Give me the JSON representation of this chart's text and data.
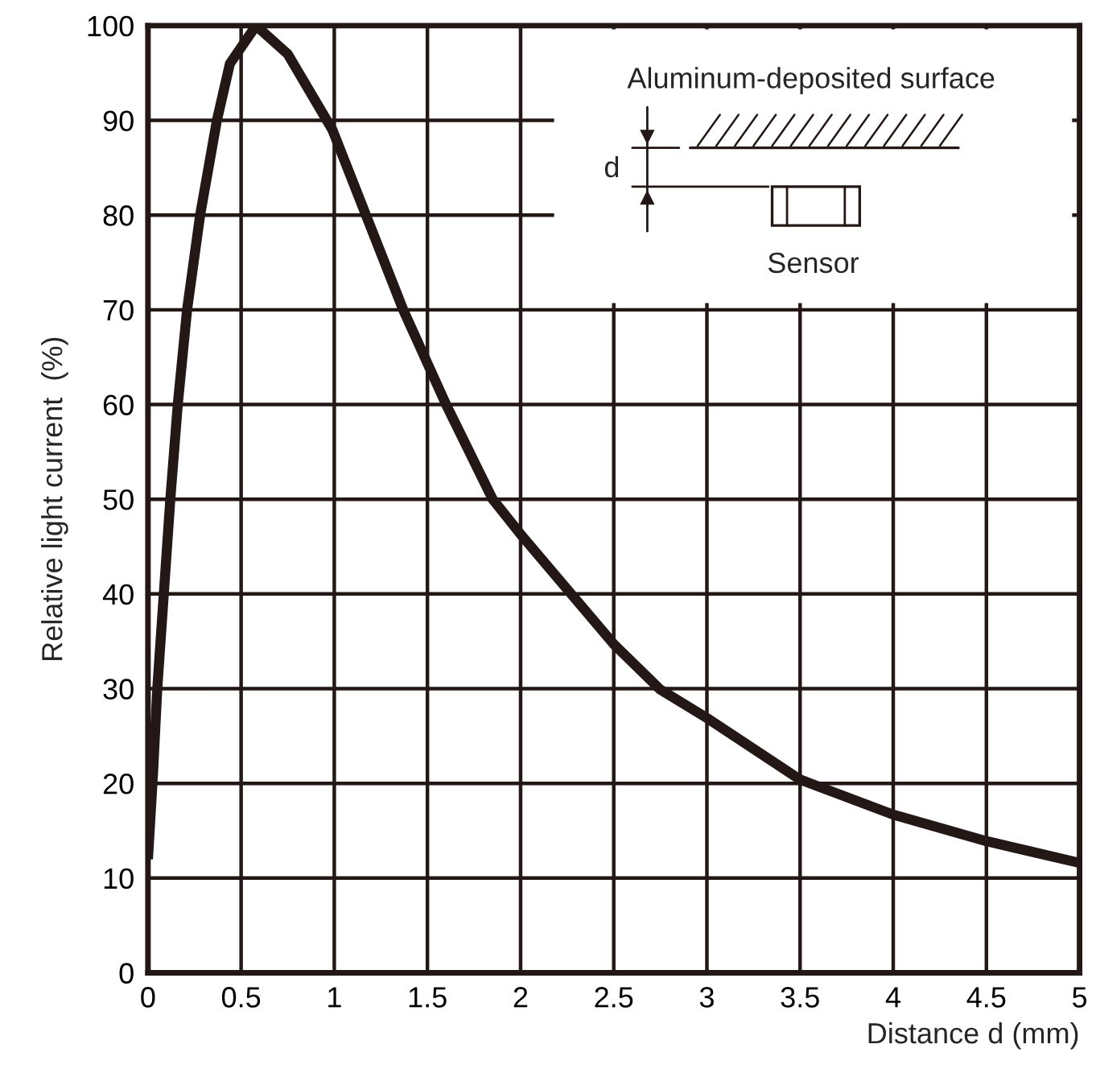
{
  "chart_data": {
    "type": "line",
    "xlabel": "Distance d (mm)",
    "ylabel": "Relative light current  (%)",
    "annotations": [
      "Aluminum-deposited surface",
      "d",
      "Sensor"
    ],
    "series": [
      {
        "color": "#231815",
        "x": [
          0,
          0.027,
          0.05,
          0.085,
          0.12,
          0.16,
          0.21,
          0.28,
          0.37,
          0.44,
          0.58,
          0.75,
          0.99,
          1.17,
          1.37,
          1.6,
          1.85,
          2.0,
          2.25,
          2.5,
          2.75,
          3.0,
          3.5,
          4.0,
          4.5,
          5.0
        ],
        "values": [
          12,
          21,
          30,
          40,
          50,
          60,
          70,
          80,
          90,
          96,
          100,
          97,
          89,
          80,
          70,
          60,
          50,
          46.3,
          40.5,
          34.7,
          29.9,
          26.9,
          20.4,
          16.7,
          13.9,
          11.6
        ]
      }
    ],
    "xlim": [
      0,
      5
    ],
    "ylim": [
      0,
      100
    ],
    "xticks": [
      0,
      0.5,
      1,
      1.5,
      2,
      2.5,
      3,
      3.5,
      4,
      4.5,
      5
    ],
    "yticks": [
      0,
      10,
      20,
      30,
      40,
      50,
      60,
      70,
      80,
      90,
      100
    ],
    "grid": true,
    "legend": false,
    "marker": "none",
    "line_style": "solid"
  }
}
